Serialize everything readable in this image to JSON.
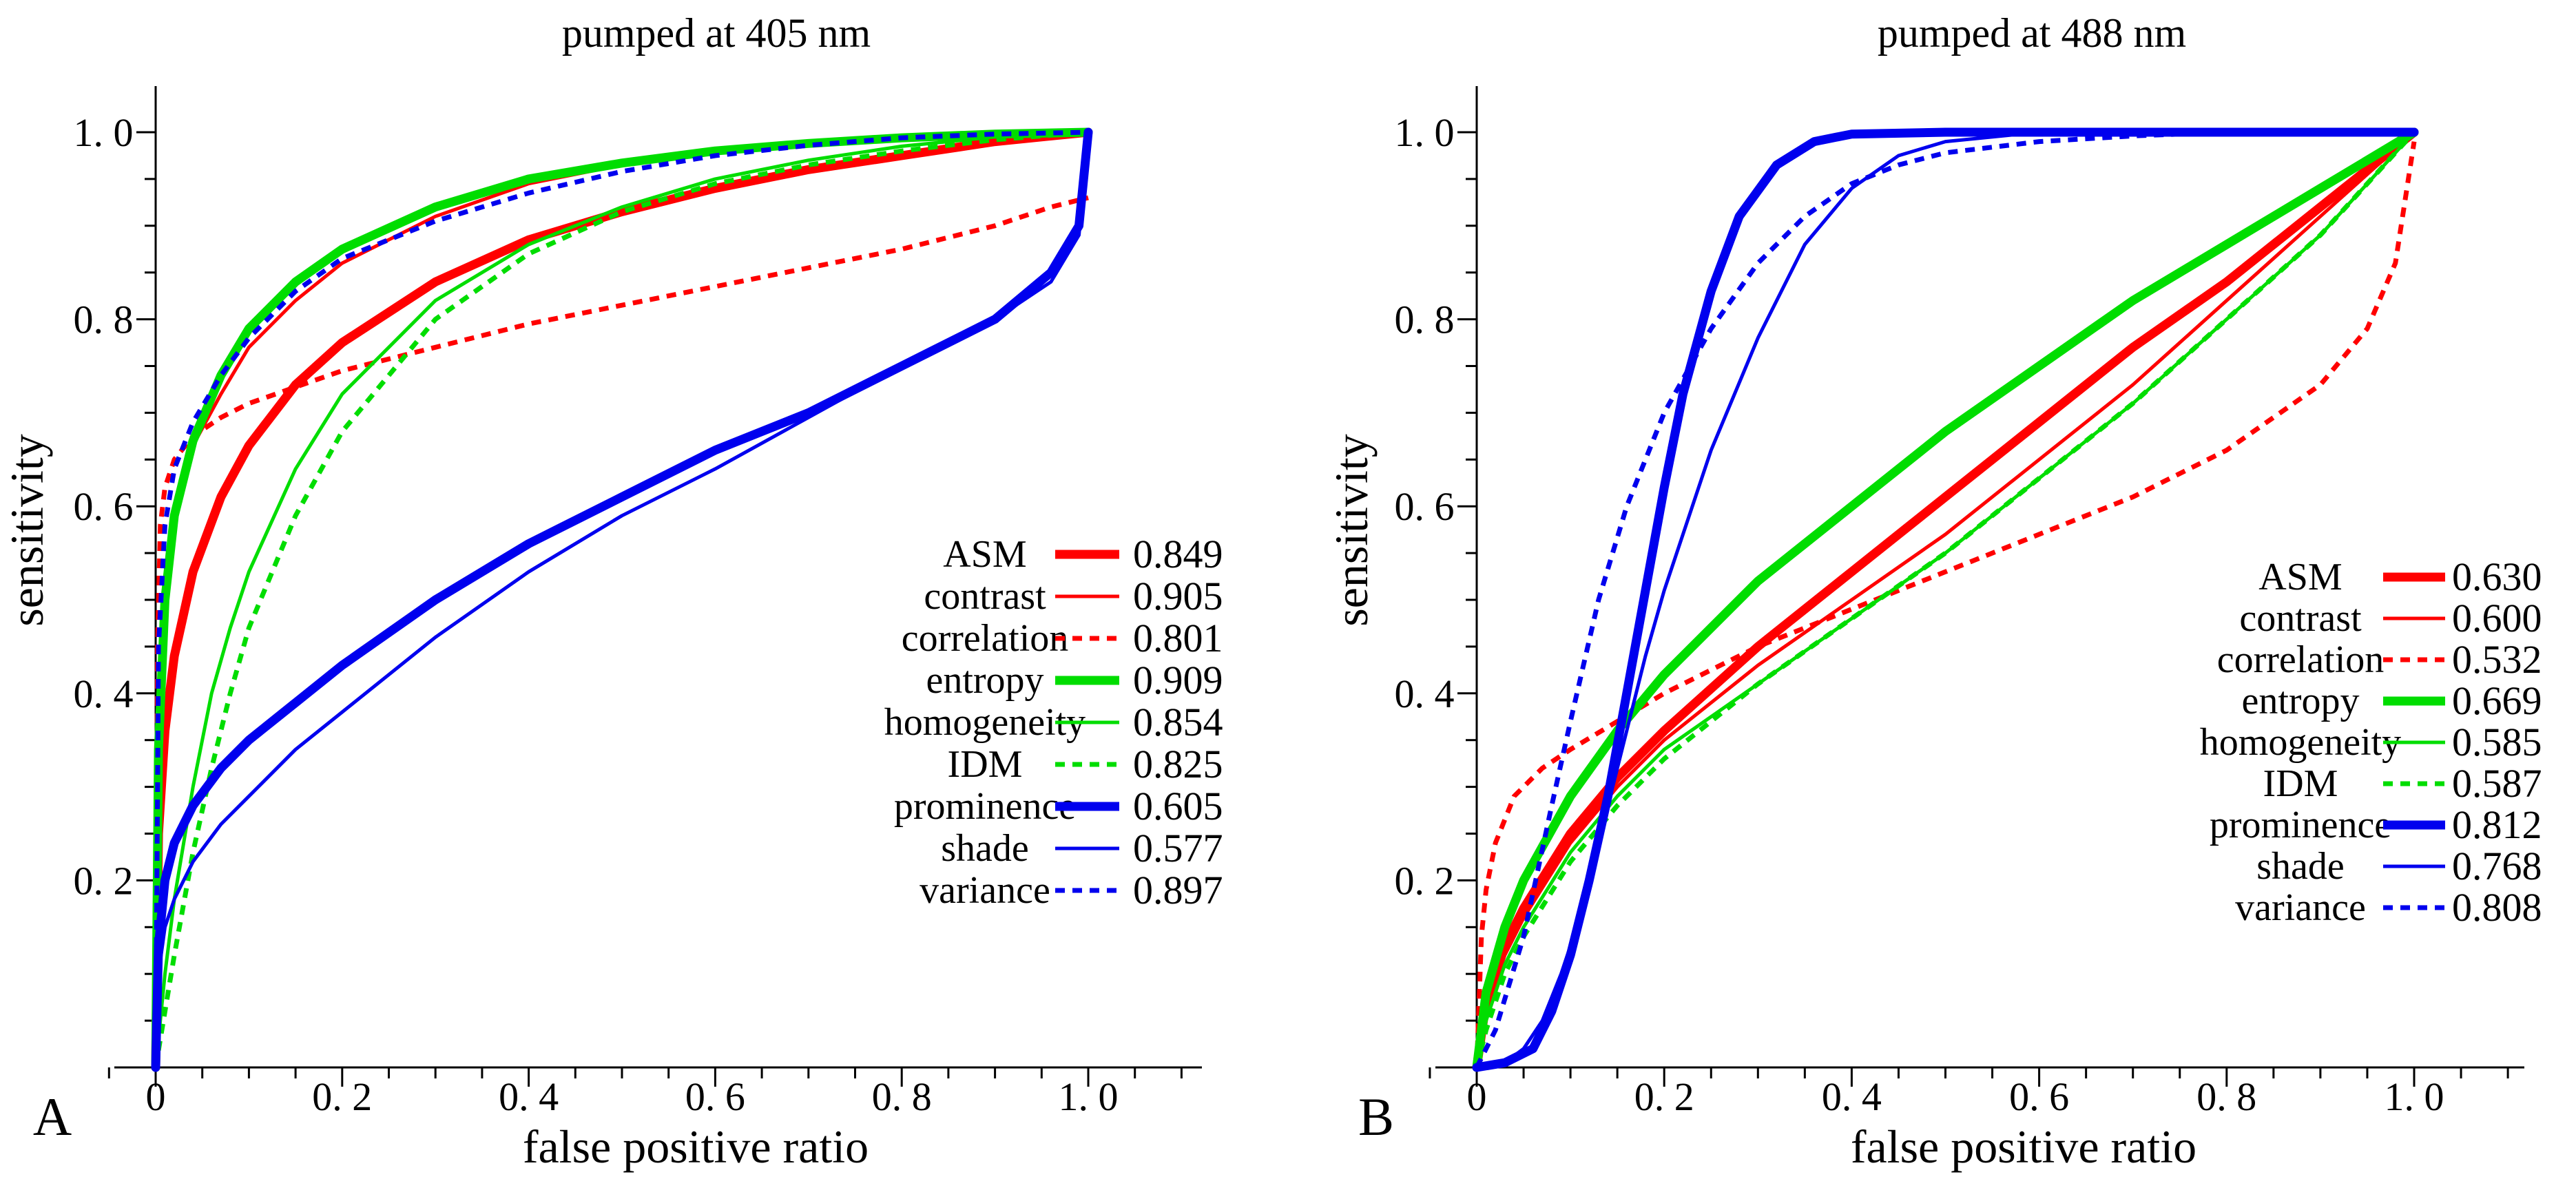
{
  "chart_data": [
    {
      "type": "line",
      "panel_label": "A",
      "title": "pumped at 405 nm",
      "xlabel": "false positive ratio",
      "ylabel": "sensitivity",
      "xlim": [
        0,
        1.1
      ],
      "ylim": [
        0,
        1.05
      ],
      "x_ticks": [
        {
          "value": 0,
          "label": "0"
        },
        {
          "value": 0.2,
          "label": "0. 2"
        },
        {
          "value": 0.4,
          "label": "0. 4"
        },
        {
          "value": 0.6,
          "label": "0. 6"
        },
        {
          "value": 0.8,
          "label": "0. 8"
        },
        {
          "value": 1.0,
          "label": "1. 0"
        }
      ],
      "y_ticks": [
        {
          "value": 0.2,
          "label": "0. 2"
        },
        {
          "value": 0.4,
          "label": "0. 4"
        },
        {
          "value": 0.6,
          "label": "0. 6"
        },
        {
          "value": 0.8,
          "label": "0. 8"
        },
        {
          "value": 1.0,
          "label": "1. 0"
        }
      ],
      "legend_placement": "center-right",
      "series": [
        {
          "name": "ASM",
          "value": "0.849",
          "color": "#ff0000",
          "style": "thick",
          "x": [
            0,
            0.003,
            0.01,
            0.02,
            0.04,
            0.07,
            0.1,
            0.15,
            0.2,
            0.3,
            0.4,
            0.5,
            0.6,
            0.7,
            0.8,
            0.9,
            1.0
          ],
          "y": [
            0,
            0.25,
            0.36,
            0.44,
            0.53,
            0.61,
            0.665,
            0.73,
            0.775,
            0.84,
            0.885,
            0.915,
            0.94,
            0.96,
            0.975,
            0.99,
            1.0
          ]
        },
        {
          "name": "contrast",
          "value": "0.905",
          "color": "#ff0000",
          "style": "thin",
          "x": [
            0,
            0.003,
            0.01,
            0.02,
            0.04,
            0.07,
            0.1,
            0.15,
            0.2,
            0.3,
            0.4,
            0.5,
            0.6,
            0.7,
            0.8,
            0.9,
            1.0
          ],
          "y": [
            0,
            0.35,
            0.5,
            0.58,
            0.665,
            0.72,
            0.77,
            0.82,
            0.86,
            0.91,
            0.945,
            0.965,
            0.978,
            0.986,
            0.992,
            0.997,
            1.0
          ]
        },
        {
          "name": "correlation",
          "value": "0.801",
          "color": "#ff0000",
          "style": "dashed",
          "x": [
            0,
            0.002,
            0.005,
            0.01,
            0.02,
            0.04,
            0.07,
            0.1,
            0.2,
            0.3,
            0.4,
            0.5,
            0.6,
            0.7,
            0.8,
            0.9,
            0.96,
            1.0
          ],
          "y": [
            0,
            0.45,
            0.58,
            0.62,
            0.65,
            0.675,
            0.695,
            0.71,
            0.745,
            0.77,
            0.795,
            0.815,
            0.835,
            0.855,
            0.875,
            0.9,
            0.92,
            0.93
          ]
        },
        {
          "name": "entropy",
          "value": "0.909",
          "color": "#00dd00",
          "style": "thick",
          "x": [
            0,
            0.003,
            0.01,
            0.02,
            0.04,
            0.07,
            0.1,
            0.15,
            0.2,
            0.3,
            0.4,
            0.5,
            0.6,
            0.7,
            0.8,
            0.9,
            1.0
          ],
          "y": [
            0,
            0.34,
            0.5,
            0.59,
            0.67,
            0.74,
            0.79,
            0.84,
            0.875,
            0.92,
            0.95,
            0.967,
            0.98,
            0.988,
            0.994,
            0.998,
            1.0
          ]
        },
        {
          "name": "homogeneity",
          "value": "0.854",
          "color": "#00dd00",
          "style": "thin",
          "x": [
            0,
            0.01,
            0.02,
            0.04,
            0.06,
            0.08,
            0.1,
            0.15,
            0.2,
            0.3,
            0.4,
            0.5,
            0.6,
            0.7,
            0.8,
            0.9,
            1.0
          ],
          "y": [
            0,
            0.1,
            0.18,
            0.3,
            0.4,
            0.47,
            0.53,
            0.64,
            0.72,
            0.82,
            0.88,
            0.92,
            0.95,
            0.97,
            0.985,
            0.995,
            1.0
          ]
        },
        {
          "name": "IDM",
          "value": "0.825",
          "color": "#00dd00",
          "style": "dashed",
          "x": [
            0,
            0.01,
            0.02,
            0.04,
            0.06,
            0.08,
            0.1,
            0.15,
            0.2,
            0.3,
            0.4,
            0.5,
            0.6,
            0.7,
            0.8,
            0.9,
            1.0
          ],
          "y": [
            0,
            0.06,
            0.12,
            0.23,
            0.32,
            0.4,
            0.47,
            0.59,
            0.68,
            0.8,
            0.87,
            0.915,
            0.945,
            0.965,
            0.98,
            0.992,
            1.0
          ]
        },
        {
          "name": "prominence",
          "value": "0.605",
          "color": "#0000ee",
          "style": "thick",
          "x": [
            0,
            0.003,
            0.01,
            0.02,
            0.04,
            0.07,
            0.1,
            0.15,
            0.2,
            0.3,
            0.4,
            0.5,
            0.6,
            0.7,
            0.8,
            0.9,
            0.96,
            0.99,
            1.0
          ],
          "y": [
            0,
            0.13,
            0.2,
            0.24,
            0.28,
            0.32,
            0.35,
            0.39,
            0.43,
            0.5,
            0.56,
            0.61,
            0.66,
            0.7,
            0.75,
            0.8,
            0.85,
            0.9,
            1.0
          ]
        },
        {
          "name": "shade",
          "value": "0.577",
          "color": "#0000ee",
          "style": "thin",
          "x": [
            0,
            0.003,
            0.01,
            0.02,
            0.04,
            0.07,
            0.1,
            0.15,
            0.2,
            0.3,
            0.4,
            0.5,
            0.6,
            0.7,
            0.8,
            0.9,
            0.96,
            0.99,
            1.0
          ],
          "y": [
            0,
            0.1,
            0.15,
            0.18,
            0.22,
            0.26,
            0.29,
            0.34,
            0.38,
            0.46,
            0.53,
            0.59,
            0.64,
            0.695,
            0.75,
            0.8,
            0.84,
            0.89,
            1.0
          ]
        },
        {
          "name": "variance",
          "value": "0.897",
          "color": "#0000ee",
          "style": "dashed",
          "x": [
            0,
            0.003,
            0.01,
            0.02,
            0.04,
            0.07,
            0.1,
            0.15,
            0.2,
            0.3,
            0.4,
            0.5,
            0.6,
            0.7,
            0.8,
            0.9,
            1.0
          ],
          "y": [
            0,
            0.45,
            0.58,
            0.64,
            0.69,
            0.74,
            0.78,
            0.83,
            0.865,
            0.905,
            0.935,
            0.958,
            0.975,
            0.986,
            0.994,
            0.998,
            1.0
          ]
        }
      ]
    },
    {
      "type": "line",
      "panel_label": "B",
      "title": "pumped at 488 nm",
      "xlabel": "false positive ratio",
      "ylabel": "sensitivity",
      "xlim": [
        0,
        1.1
      ],
      "ylim": [
        0,
        1.05
      ],
      "x_ticks": [
        {
          "value": 0,
          "label": "0"
        },
        {
          "value": 0.2,
          "label": "0. 2"
        },
        {
          "value": 0.4,
          "label": "0. 4"
        },
        {
          "value": 0.6,
          "label": "0. 6"
        },
        {
          "value": 0.8,
          "label": "0. 8"
        },
        {
          "value": 1.0,
          "label": "1. 0"
        }
      ],
      "y_ticks": [
        {
          "value": 0.2,
          "label": "0. 2"
        },
        {
          "value": 0.4,
          "label": "0. 4"
        },
        {
          "value": 0.6,
          "label": "0. 6"
        },
        {
          "value": 0.8,
          "label": "0. 8"
        },
        {
          "value": 1.0,
          "label": "1. 0"
        }
      ],
      "legend_placement": "center-right",
      "series": [
        {
          "name": "ASM",
          "value": "0.630",
          "color": "#ff0000",
          "style": "thick",
          "x": [
            0,
            0.01,
            0.03,
            0.05,
            0.1,
            0.15,
            0.2,
            0.3,
            0.4,
            0.5,
            0.6,
            0.7,
            0.8,
            0.9,
            1.0
          ],
          "y": [
            0,
            0.07,
            0.13,
            0.17,
            0.25,
            0.31,
            0.36,
            0.45,
            0.53,
            0.61,
            0.69,
            0.77,
            0.84,
            0.92,
            1.0
          ]
        },
        {
          "name": "contrast",
          "value": "0.600",
          "color": "#ff0000",
          "style": "thin",
          "x": [
            0,
            0.01,
            0.03,
            0.05,
            0.1,
            0.15,
            0.2,
            0.3,
            0.4,
            0.5,
            0.6,
            0.7,
            0.8,
            0.9,
            1.0
          ],
          "y": [
            0,
            0.06,
            0.12,
            0.16,
            0.24,
            0.3,
            0.35,
            0.43,
            0.5,
            0.57,
            0.65,
            0.73,
            0.82,
            0.91,
            1.0
          ]
        },
        {
          "name": "correlation",
          "value": "0.532",
          "color": "#ff0000",
          "style": "dashed",
          "x": [
            0,
            0.005,
            0.01,
            0.02,
            0.04,
            0.07,
            0.1,
            0.15,
            0.2,
            0.3,
            0.4,
            0.5,
            0.6,
            0.7,
            0.8,
            0.9,
            0.95,
            0.98,
            1.0
          ],
          "y": [
            0,
            0.14,
            0.19,
            0.24,
            0.29,
            0.32,
            0.34,
            0.37,
            0.4,
            0.45,
            0.49,
            0.53,
            0.57,
            0.61,
            0.66,
            0.73,
            0.79,
            0.86,
            0.99
          ]
        },
        {
          "name": "entropy",
          "value": "0.669",
          "color": "#00dd00",
          "style": "thick",
          "x": [
            0,
            0.01,
            0.03,
            0.05,
            0.1,
            0.15,
            0.2,
            0.3,
            0.4,
            0.5,
            0.6,
            0.7,
            0.8,
            0.9,
            1.0
          ],
          "y": [
            0,
            0.08,
            0.15,
            0.2,
            0.29,
            0.36,
            0.42,
            0.52,
            0.6,
            0.68,
            0.75,
            0.82,
            0.88,
            0.94,
            1.0
          ]
        },
        {
          "name": "homogeneity",
          "value": "0.585",
          "color": "#00dd00",
          "style": "thin",
          "x": [
            0,
            0.01,
            0.03,
            0.05,
            0.1,
            0.15,
            0.2,
            0.3,
            0.4,
            0.5,
            0.6,
            0.7,
            0.8,
            0.9,
            1.0
          ],
          "y": [
            0,
            0.05,
            0.11,
            0.15,
            0.23,
            0.29,
            0.34,
            0.41,
            0.48,
            0.55,
            0.63,
            0.71,
            0.8,
            0.89,
            1.0
          ]
        },
        {
          "name": "IDM",
          "value": "0.587",
          "color": "#00dd00",
          "style": "dashed",
          "x": [
            0,
            0.01,
            0.03,
            0.05,
            0.1,
            0.15,
            0.2,
            0.3,
            0.4,
            0.5,
            0.6,
            0.7,
            0.8,
            0.9,
            1.0
          ],
          "y": [
            0,
            0.04,
            0.1,
            0.14,
            0.22,
            0.28,
            0.33,
            0.41,
            0.48,
            0.55,
            0.63,
            0.71,
            0.8,
            0.89,
            1.0
          ]
        },
        {
          "name": "prominence",
          "value": "0.812",
          "color": "#0000ee",
          "style": "thick",
          "x": [
            0,
            0.03,
            0.06,
            0.08,
            0.1,
            0.12,
            0.14,
            0.16,
            0.18,
            0.2,
            0.22,
            0.25,
            0.28,
            0.32,
            0.36,
            0.4,
            0.5,
            0.6,
            1.0
          ],
          "y": [
            0,
            0.005,
            0.02,
            0.06,
            0.12,
            0.2,
            0.29,
            0.4,
            0.51,
            0.62,
            0.72,
            0.83,
            0.91,
            0.965,
            0.99,
            0.998,
            1.0,
            1.0,
            1.0
          ]
        },
        {
          "name": "shade",
          "value": "0.768",
          "color": "#0000ee",
          "style": "thin",
          "x": [
            0,
            0.03,
            0.05,
            0.07,
            0.09,
            0.11,
            0.13,
            0.15,
            0.18,
            0.2,
            0.25,
            0.3,
            0.35,
            0.4,
            0.45,
            0.5,
            0.6,
            0.8,
            1.0
          ],
          "y": [
            0,
            0.005,
            0.02,
            0.05,
            0.1,
            0.16,
            0.24,
            0.32,
            0.44,
            0.51,
            0.66,
            0.78,
            0.88,
            0.94,
            0.975,
            0.99,
            1.0,
            1.0,
            1.0
          ]
        },
        {
          "name": "variance",
          "value": "0.808",
          "color": "#0000ee",
          "style": "dashed",
          "x": [
            0,
            0.02,
            0.05,
            0.08,
            0.1,
            0.13,
            0.16,
            0.2,
            0.25,
            0.3,
            0.35,
            0.4,
            0.45,
            0.5,
            0.6,
            0.7,
            0.8,
            1.0
          ],
          "y": [
            0,
            0.04,
            0.14,
            0.28,
            0.37,
            0.5,
            0.6,
            0.7,
            0.79,
            0.86,
            0.91,
            0.945,
            0.965,
            0.978,
            0.99,
            0.996,
            1.0,
            1.0
          ]
        }
      ]
    }
  ]
}
